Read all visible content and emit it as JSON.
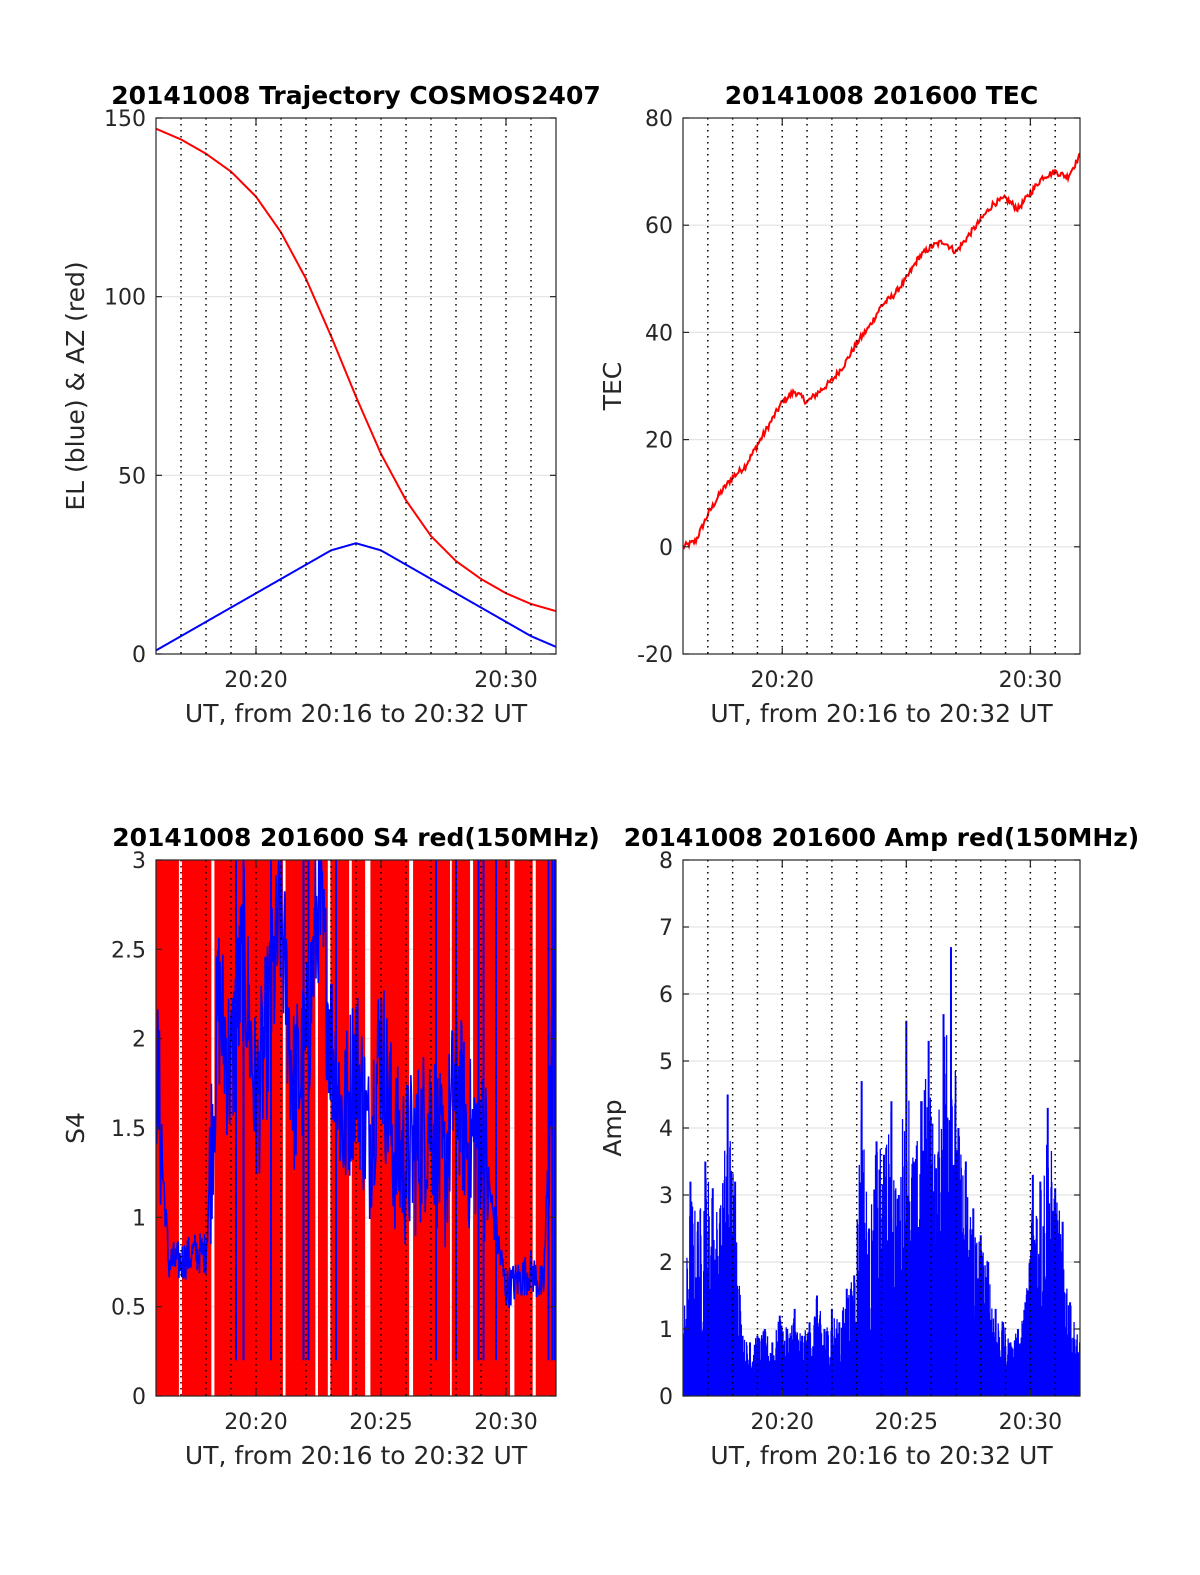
{
  "figure": {
    "background": "#ffffff"
  },
  "chart_data": [
    {
      "id": "trajectory",
      "type": "line",
      "title": "20141008 Trajectory COSMOS2407",
      "xlabel": "UT, from 20:16 to 20:32 UT",
      "ylabel": "EL (blue) & AZ (red)",
      "xlim": [
        16,
        32
      ],
      "ylim": [
        0,
        150
      ],
      "yticks": [
        0,
        50,
        100,
        150
      ],
      "xticks": [
        {
          "value": 20,
          "label": "20:20"
        },
        {
          "value": 30,
          "label": "20:30"
        }
      ],
      "minor_x_gridlines": [
        17,
        18,
        19,
        20,
        21,
        22,
        23,
        24,
        25,
        26,
        27,
        28,
        29,
        30,
        31
      ],
      "grid": true,
      "series": [
        {
          "name": "AZ",
          "color": "#ff0000",
          "x": [
            16,
            17,
            18,
            19,
            20,
            21,
            22,
            23,
            24,
            25,
            26,
            27,
            28,
            29,
            30,
            31,
            32
          ],
          "y": [
            147,
            144,
            140,
            135,
            128,
            118,
            105,
            89,
            72,
            56,
            43,
            33,
            26,
            21,
            17,
            14,
            12
          ]
        },
        {
          "name": "EL",
          "color": "#0000ff",
          "x": [
            16,
            17,
            18,
            19,
            20,
            21,
            22,
            23,
            24,
            25,
            26,
            27,
            28,
            29,
            30,
            31,
            32
          ],
          "y": [
            1,
            5,
            9,
            13,
            17,
            21,
            25,
            29,
            31,
            29,
            25,
            21,
            17,
            13,
            9,
            5,
            2
          ]
        }
      ]
    },
    {
      "id": "tec",
      "type": "line",
      "title": "20141008 201600 TEC",
      "xlabel": "UT, from 20:16 to 20:32 UT",
      "ylabel": "TEC",
      "xlim": [
        16,
        32
      ],
      "ylim": [
        -20,
        80
      ],
      "yticks": [
        -20,
        0,
        20,
        40,
        60,
        80
      ],
      "xticks": [
        {
          "value": 20,
          "label": "20:20"
        },
        {
          "value": 30,
          "label": "20:30"
        }
      ],
      "minor_x_gridlines": [
        17,
        18,
        19,
        20,
        21,
        22,
        23,
        24,
        25,
        26,
        27,
        28,
        29,
        30,
        31
      ],
      "grid": true,
      "series": [
        {
          "name": "TEC",
          "color": "#ff0000",
          "x": [
            16,
            16.5,
            17,
            17.5,
            18,
            18.5,
            19,
            19.5,
            20,
            20.5,
            21,
            21.5,
            22,
            22.5,
            23,
            23.5,
            24,
            24.5,
            25,
            25.5,
            26,
            26.5,
            27,
            27.5,
            28,
            28.5,
            29,
            29.5,
            30,
            30.5,
            31,
            31.5,
            32
          ],
          "y": [
            0,
            1,
            6,
            10,
            13,
            15,
            19,
            23,
            27,
            29,
            27,
            29,
            31,
            34,
            38,
            41,
            45,
            47,
            50,
            54,
            56,
            57,
            55,
            58,
            61,
            64,
            65,
            63,
            66,
            69,
            70,
            69,
            73
          ]
        }
      ]
    },
    {
      "id": "s4",
      "type": "line",
      "title": "20141008 201600 S4 red(150MHz)",
      "xlabel": "UT, from 20:16 to 20:32 UT",
      "ylabel": "S4",
      "xlim": [
        16,
        32
      ],
      "ylim": [
        0,
        3
      ],
      "yticks": [
        0,
        0.5,
        1,
        1.5,
        2,
        2.5,
        3
      ],
      "ytick_labels": [
        "0",
        "0.5",
        "1",
        "1.5",
        "2",
        "2.5",
        "3"
      ],
      "xticks": [
        {
          "value": 20,
          "label": "20:20"
        },
        {
          "value": 25,
          "label": "20:25"
        },
        {
          "value": 30,
          "label": "20:30"
        }
      ],
      "minor_x_gridlines": [
        17,
        18,
        19,
        20,
        21,
        22,
        23,
        24,
        25,
        26,
        27,
        28,
        29,
        30,
        31
      ],
      "grid": true,
      "series": [
        {
          "name": "S4 red",
          "color": "#ff0000",
          "x": [
            16,
            17,
            18,
            19,
            20,
            21,
            22,
            23,
            24,
            25,
            26,
            27,
            28,
            29,
            30,
            31,
            32
          ],
          "y": [
            3,
            3,
            3,
            3,
            3,
            3,
            3,
            3,
            3,
            3,
            3,
            3,
            3,
            3,
            3,
            3,
            3
          ]
        },
        {
          "name": "S4 blue",
          "color": "#0000ff",
          "x": [
            16,
            16.5,
            17,
            17.5,
            18,
            18.5,
            19,
            19.5,
            20,
            20.5,
            21,
            21.5,
            22,
            22.5,
            23,
            23.5,
            24,
            24.5,
            25,
            25.5,
            26,
            26.5,
            27,
            27.5,
            28,
            28.5,
            29,
            29.5,
            30,
            30.5,
            31,
            31.5,
            32
          ],
          "y": [
            1.9,
            0.75,
            0.75,
            0.8,
            0.8,
            2.2,
            1.8,
            2.5,
            1.6,
            2.1,
            2.7,
            1.7,
            1.9,
            2.8,
            2.0,
            1.5,
            1.9,
            1.4,
            2.0,
            1.4,
            1.3,
            1.4,
            1.6,
            1.2,
            1.8,
            1.4,
            1.5,
            1.0,
            0.6,
            0.65,
            0.7,
            0.6,
            2.5
          ]
        }
      ]
    },
    {
      "id": "amp",
      "type": "line",
      "title": "20141008 201600 Amp red(150MHz)",
      "xlabel": "UT, from 20:16 to 20:32 UT",
      "ylabel": "Amp",
      "xlim": [
        16,
        32
      ],
      "ylim": [
        0,
        8
      ],
      "yticks": [
        0,
        1,
        2,
        3,
        4,
        5,
        6,
        7,
        8
      ],
      "xticks": [
        {
          "value": 20,
          "label": "20:20"
        },
        {
          "value": 25,
          "label": "20:25"
        },
        {
          "value": 30,
          "label": "20:30"
        }
      ],
      "minor_x_gridlines": [
        17,
        18,
        19,
        20,
        21,
        22,
        23,
        24,
        25,
        26,
        27,
        28,
        29,
        30,
        31
      ],
      "grid": true,
      "series": [
        {
          "name": "Amp",
          "color": "#0000ff",
          "x": [
            16,
            16.3,
            16.6,
            16.9,
            17.2,
            17.5,
            17.8,
            18.1,
            18.4,
            18.7,
            19.0,
            19.3,
            19.6,
            19.9,
            20.2,
            20.5,
            20.8,
            21.1,
            21.4,
            21.7,
            22.0,
            22.3,
            22.6,
            22.9,
            23.2,
            23.5,
            23.8,
            24.1,
            24.4,
            24.7,
            25.0,
            25.3,
            25.6,
            25.9,
            26.2,
            26.5,
            26.8,
            27.1,
            27.4,
            27.7,
            28.0,
            28.3,
            28.6,
            28.9,
            29.2,
            29.5,
            29.8,
            30.1,
            30.4,
            30.7,
            31.0,
            31.3,
            31.6,
            32
          ],
          "y": [
            0.9,
            3.2,
            2.6,
            3.5,
            3.1,
            2.8,
            4.5,
            3.2,
            0.9,
            0.8,
            0.9,
            1.0,
            0.8,
            1.2,
            1.0,
            1.3,
            0.9,
            1.1,
            1.5,
            1.0,
            1.3,
            1.1,
            1.6,
            1.8,
            4.7,
            2.5,
            3.8,
            3.6,
            4.4,
            3.0,
            5.6,
            3.5,
            4.4,
            5.3,
            3.4,
            5.7,
            6.7,
            4.0,
            3.5,
            2.8,
            2.4,
            2.0,
            1.3,
            1.1,
            0.8,
            1.0,
            1.4,
            3.3,
            3.2,
            4.3,
            3.1,
            2.6,
            1.4,
            0.8
          ]
        }
      ]
    }
  ]
}
